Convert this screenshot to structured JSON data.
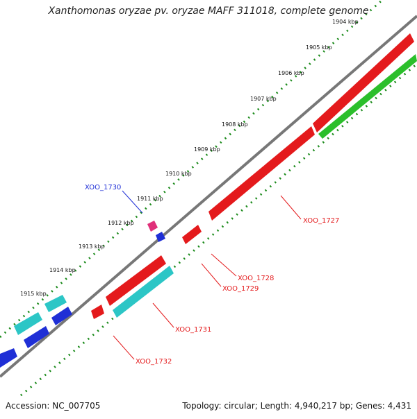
{
  "title": "Xanthomonas oryzae pv. oryzae MAFF 311018, complete genome",
  "footer": {
    "accession": "Accession: NC_007705",
    "summary": "Topology: circular; Length: 4,940,217 bp; Genes: 4,431"
  },
  "ruler": [
    "1904 kbp",
    "1905 kbp",
    "1906 kbp",
    "1907 kbp",
    "1908 kbp",
    "1909 kbp",
    "1910 kbp",
    "1911 kbp",
    "1912 kbp",
    "1913 kbp",
    "1914 kbp",
    "1915 kbp"
  ],
  "genes": [
    {
      "id": "XOO_1727",
      "color": "#e41a1c",
      "strand": "+"
    },
    {
      "id": "XOO_1728",
      "color": "#e41a1c",
      "strand": "+"
    },
    {
      "id": "XOO_1729",
      "color": "#e41a1c",
      "strand": "+"
    },
    {
      "id": "XOO_1730",
      "color": "#1f2fd6",
      "strand": "-"
    },
    {
      "id": "XOO_1731",
      "color": "#e41a1c",
      "strand": "+"
    },
    {
      "id": "XOO_1732",
      "color": "#e41a1c",
      "strand": "+"
    }
  ],
  "colors": {
    "backbone": "#777777",
    "ruler_dots": "#1a8a1a",
    "red": "#e41a1c",
    "green": "#2bbf2b",
    "cyan": "#2cc6c6",
    "blue": "#1f2fd6",
    "magenta": "#e0307a"
  }
}
